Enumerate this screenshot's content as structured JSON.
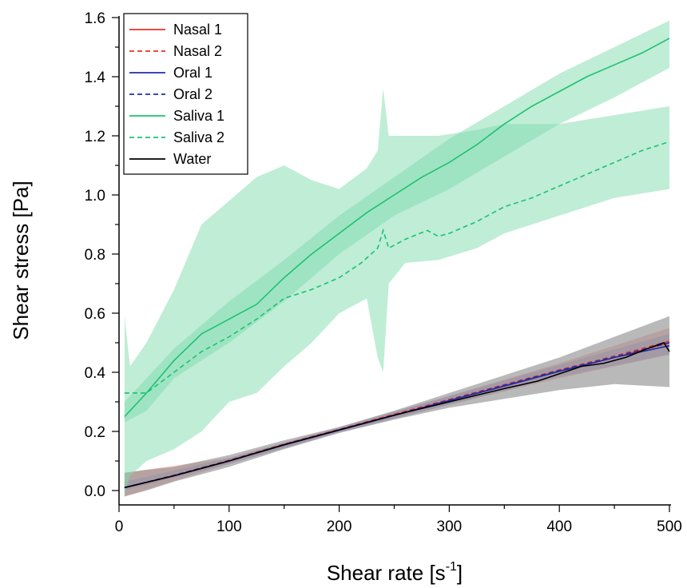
{
  "chart_data": {
    "type": "line",
    "xlabel": "Shear rate [s-1]",
    "xlabel_base": "Shear rate [s",
    "xlabel_sup": "-1",
    "xlabel_close": "]",
    "ylabel": "Shear stress [Pa]",
    "xlim": [
      0,
      500
    ],
    "ylim": [
      -0.05,
      1.6
    ],
    "xticks": [
      0,
      100,
      200,
      300,
      400,
      500
    ],
    "xtick_labels": [
      "0",
      "100",
      "200",
      "300",
      "400",
      "500"
    ],
    "yticks": [
      0.0,
      0.2,
      0.4,
      0.6,
      0.8,
      1.0,
      1.2,
      1.4,
      1.6
    ],
    "ytick_labels": [
      "0.0",
      "0.2",
      "0.4",
      "0.6",
      "0.8",
      "1.0",
      "1.2",
      "1.4",
      "1.6"
    ],
    "grid": false,
    "legend_position": "top-left",
    "series": [
      {
        "name": "Nasal 1",
        "color": "#e8312a",
        "dash": "solid",
        "x": [
          5,
          50,
          100,
          150,
          200,
          250,
          300,
          350,
          400,
          450,
          500
        ],
        "y": [
          0.01,
          0.05,
          0.1,
          0.155,
          0.205,
          0.255,
          0.305,
          0.355,
          0.405,
          0.45,
          0.5
        ]
      },
      {
        "name": "Nasal 2",
        "color": "#e8312a",
        "dash": "dashed",
        "x": [
          5,
          50,
          100,
          150,
          200,
          250,
          300,
          350,
          400,
          450,
          500
        ],
        "y": [
          0.01,
          0.052,
          0.102,
          0.157,
          0.207,
          0.258,
          0.308,
          0.358,
          0.408,
          0.455,
          0.505
        ]
      },
      {
        "name": "Oral 1",
        "color": "#1f2ea8",
        "dash": "solid",
        "x": [
          5,
          50,
          100,
          150,
          200,
          250,
          300,
          350,
          400,
          450,
          500
        ],
        "y": [
          0.01,
          0.05,
          0.1,
          0.154,
          0.204,
          0.254,
          0.304,
          0.353,
          0.403,
          0.45,
          0.49
        ]
      },
      {
        "name": "Oral 2",
        "color": "#1f2ea8",
        "dash": "dashed",
        "x": [
          5,
          50,
          100,
          150,
          200,
          250,
          300,
          350,
          400,
          450,
          500
        ],
        "y": [
          0.01,
          0.051,
          0.101,
          0.155,
          0.205,
          0.255,
          0.306,
          0.356,
          0.406,
          0.452,
          0.5
        ]
      },
      {
        "name": "Saliva 1",
        "color": "#1ec172",
        "dash": "solid",
        "x": [
          5,
          25,
          50,
          75,
          100,
          125,
          150,
          175,
          200,
          225,
          250,
          275,
          300,
          325,
          350,
          375,
          400,
          425,
          450,
          475,
          500
        ],
        "y": [
          0.25,
          0.33,
          0.44,
          0.53,
          0.58,
          0.63,
          0.72,
          0.8,
          0.87,
          0.94,
          1.0,
          1.06,
          1.11,
          1.17,
          1.24,
          1.3,
          1.35,
          1.4,
          1.44,
          1.48,
          1.53
        ]
      },
      {
        "name": "Saliva 2",
        "color": "#1ec172",
        "dash": "dashed",
        "x": [
          5,
          25,
          50,
          75,
          100,
          125,
          150,
          175,
          200,
          220,
          235,
          240,
          245,
          260,
          280,
          290,
          300,
          325,
          350,
          375,
          400,
          425,
          450,
          475,
          500
        ],
        "y": [
          0.33,
          0.33,
          0.4,
          0.47,
          0.52,
          0.58,
          0.65,
          0.68,
          0.72,
          0.77,
          0.82,
          0.88,
          0.82,
          0.85,
          0.88,
          0.86,
          0.87,
          0.91,
          0.96,
          0.99,
          1.03,
          1.07,
          1.11,
          1.15,
          1.18
        ]
      },
      {
        "name": "Water",
        "color": "#000000",
        "dash": "solid",
        "x": [
          5,
          50,
          100,
          150,
          200,
          250,
          300,
          350,
          380,
          400,
          420,
          440,
          460,
          480,
          495,
          500
        ],
        "y": [
          0.01,
          0.05,
          0.1,
          0.155,
          0.205,
          0.255,
          0.3,
          0.345,
          0.37,
          0.395,
          0.42,
          0.43,
          0.45,
          0.48,
          0.5,
          0.47
        ]
      }
    ],
    "bands": [
      {
        "color": "#f29b94",
        "opacity": 0.55,
        "x": [
          5,
          100,
          200,
          300,
          400,
          500
        ],
        "lower": [
          -0.02,
          0.09,
          0.2,
          0.29,
          0.38,
          0.46
        ],
        "upper": [
          0.06,
          0.11,
          0.21,
          0.32,
          0.43,
          0.55
        ]
      },
      {
        "color": "#8d94d8",
        "opacity": 0.45,
        "x": [
          5,
          100,
          200,
          300,
          400,
          500
        ],
        "lower": [
          0.0,
          0.09,
          0.195,
          0.29,
          0.385,
          0.46
        ],
        "upper": [
          0.03,
          0.11,
          0.215,
          0.32,
          0.425,
          0.53
        ]
      },
      {
        "color": "#8a8a8a",
        "opacity": 0.6,
        "x": [
          5,
          25,
          50,
          100,
          150,
          200,
          250,
          300,
          350,
          400,
          450,
          500
        ],
        "lower": [
          -0.02,
          0.0,
          0.03,
          0.08,
          0.14,
          0.195,
          0.24,
          0.28,
          0.31,
          0.34,
          0.36,
          0.35
        ],
        "upper": [
          0.06,
          0.07,
          0.08,
          0.12,
          0.17,
          0.215,
          0.27,
          0.33,
          0.39,
          0.45,
          0.52,
          0.59
        ]
      },
      {
        "color": "#7fdcae",
        "opacity": 0.5,
        "x": [
          5,
          10,
          25,
          50,
          75,
          100,
          125,
          150,
          175,
          200,
          225,
          235,
          240,
          245,
          260,
          290,
          325,
          350,
          400,
          450,
          500
        ],
        "lower": [
          -0.02,
          0.05,
          0.1,
          0.14,
          0.2,
          0.3,
          0.33,
          0.42,
          0.5,
          0.6,
          0.65,
          0.45,
          0.4,
          0.7,
          0.77,
          0.78,
          0.82,
          0.87,
          0.93,
          0.99,
          1.02
        ],
        "upper": [
          0.59,
          0.42,
          0.5,
          0.68,
          0.9,
          0.98,
          1.06,
          1.1,
          1.05,
          1.02,
          1.09,
          1.15,
          1.36,
          1.2,
          1.2,
          1.2,
          1.22,
          1.24,
          1.24,
          1.27,
          1.3
        ]
      },
      {
        "color": "#7fdcae",
        "opacity": 0.5,
        "x": [
          5,
          25,
          50,
          100,
          150,
          200,
          250,
          300,
          350,
          400,
          450,
          500
        ],
        "lower": [
          0.23,
          0.27,
          0.38,
          0.5,
          0.64,
          0.8,
          0.93,
          1.02,
          1.13,
          1.24,
          1.33,
          1.43
        ],
        "upper": [
          0.3,
          0.38,
          0.48,
          0.64,
          0.78,
          0.93,
          1.06,
          1.19,
          1.3,
          1.41,
          1.5,
          1.59
        ]
      }
    ]
  }
}
